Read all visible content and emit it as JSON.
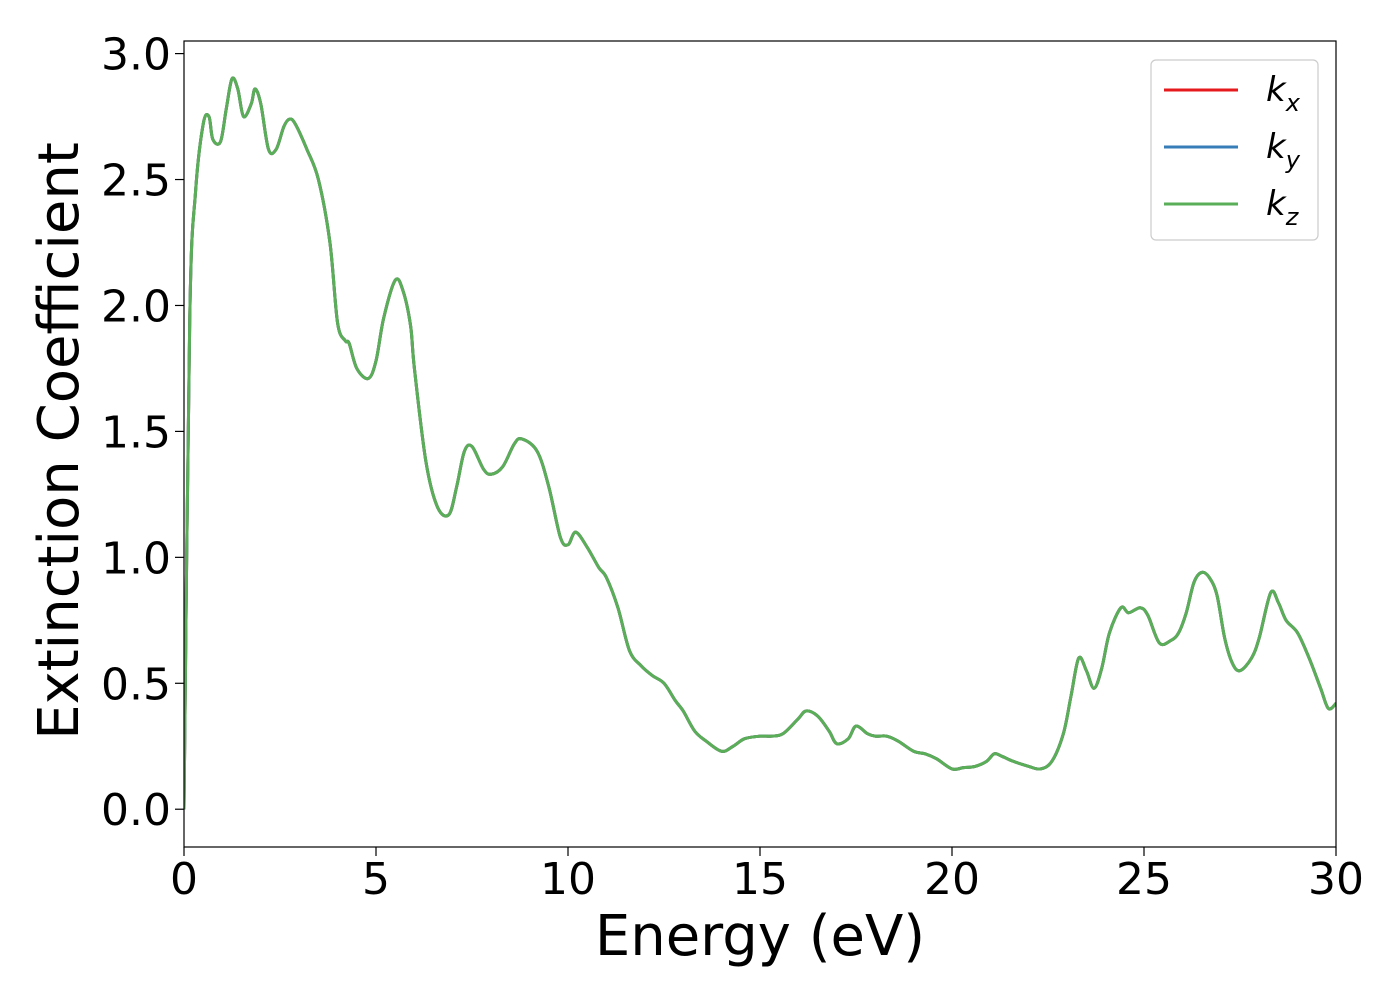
{
  "chart_data": {
    "type": "line",
    "xlabel": "Energy (eV)",
    "ylabel": "Extinction Coefficient",
    "xlim": [
      0,
      30
    ],
    "ylim": [
      -0.15,
      3.05
    ],
    "x_ticks": [
      0,
      5,
      10,
      15,
      20,
      25,
      30
    ],
    "x_tick_labels": [
      "0",
      "5",
      "10",
      "15",
      "20",
      "25",
      "30"
    ],
    "y_ticks": [
      0.0,
      0.5,
      1.0,
      1.5,
      2.0,
      2.5,
      3.0
    ],
    "y_tick_labels": [
      "0.0",
      "0.5",
      "1.0",
      "1.5",
      "2.0",
      "2.5",
      "3.0"
    ],
    "grid": false,
    "legend_position": "top-right",
    "colors": {
      "kx": "#e41a1c",
      "ky": "#377eb8",
      "kz": "#5aae58"
    },
    "series": [
      {
        "name": "kx",
        "label_main": "k",
        "label_sub": "x",
        "color": "#e41a1c",
        "x": [
          0.0,
          0.15,
          0.3,
          0.5,
          0.65,
          0.75,
          0.95,
          1.1,
          1.25,
          1.4,
          1.55,
          1.75,
          1.85,
          2.0,
          2.2,
          2.4,
          2.6,
          2.75,
          2.9,
          3.2,
          3.5,
          3.8,
          4.0,
          4.2,
          4.3,
          4.5,
          4.8,
          5.0,
          5.2,
          5.5,
          5.7,
          5.9,
          6.0,
          6.3,
          6.6,
          6.9,
          7.1,
          7.3,
          7.5,
          7.8,
          8.0,
          8.3,
          8.6,
          8.8,
          9.2,
          9.5,
          9.8,
          10.0,
          10.2,
          10.5,
          10.8,
          11.0,
          11.3,
          11.6,
          11.9,
          12.2,
          12.5,
          12.8,
          13.0,
          13.3,
          13.6,
          14.0,
          14.3,
          14.6,
          15.0,
          15.3,
          15.6,
          16.0,
          16.2,
          16.5,
          16.8,
          17.0,
          17.3,
          17.5,
          17.8,
          18.0,
          18.3,
          18.6,
          19.0,
          19.3,
          19.6,
          20.0,
          20.3,
          20.6,
          20.9,
          21.1,
          21.3,
          21.6,
          22.0,
          22.3,
          22.6,
          22.9,
          23.1,
          23.3,
          23.5,
          23.7,
          23.9,
          24.1,
          24.4,
          24.6,
          24.9,
          25.1,
          25.4,
          25.7,
          25.9,
          26.1,
          26.3,
          26.5,
          26.7,
          26.9,
          27.1,
          27.3,
          27.5,
          27.8,
          28.0,
          28.3,
          28.5,
          28.7,
          29.0,
          29.3,
          29.6,
          29.8,
          30.0
        ],
        "y": [
          0.0,
          1.95,
          2.45,
          2.72,
          2.75,
          2.66,
          2.65,
          2.78,
          2.9,
          2.86,
          2.75,
          2.8,
          2.86,
          2.8,
          2.62,
          2.62,
          2.71,
          2.74,
          2.72,
          2.62,
          2.5,
          2.25,
          1.93,
          1.86,
          1.85,
          1.75,
          1.71,
          1.78,
          1.95,
          2.1,
          2.06,
          1.92,
          1.75,
          1.38,
          1.2,
          1.17,
          1.28,
          1.42,
          1.44,
          1.35,
          1.33,
          1.36,
          1.45,
          1.47,
          1.42,
          1.28,
          1.08,
          1.05,
          1.1,
          1.04,
          0.96,
          0.92,
          0.8,
          0.63,
          0.57,
          0.53,
          0.5,
          0.43,
          0.39,
          0.31,
          0.27,
          0.23,
          0.25,
          0.28,
          0.29,
          0.29,
          0.3,
          0.36,
          0.39,
          0.37,
          0.31,
          0.26,
          0.28,
          0.33,
          0.3,
          0.29,
          0.29,
          0.27,
          0.23,
          0.22,
          0.2,
          0.16,
          0.165,
          0.17,
          0.19,
          0.22,
          0.21,
          0.19,
          0.17,
          0.16,
          0.19,
          0.3,
          0.45,
          0.6,
          0.55,
          0.48,
          0.56,
          0.7,
          0.8,
          0.78,
          0.8,
          0.77,
          0.66,
          0.67,
          0.7,
          0.78,
          0.9,
          0.94,
          0.92,
          0.85,
          0.68,
          0.58,
          0.55,
          0.6,
          0.68,
          0.86,
          0.82,
          0.75,
          0.7,
          0.6,
          0.48,
          0.4,
          0.42
        ]
      },
      {
        "name": "ky",
        "label_main": "k",
        "label_sub": "y",
        "color": "#377eb8",
        "x": [
          0.0,
          0.15,
          0.3,
          0.5,
          0.65,
          0.75,
          0.95,
          1.1,
          1.25,
          1.4,
          1.55,
          1.75,
          1.85,
          2.0,
          2.2,
          2.4,
          2.6,
          2.75,
          2.9,
          3.2,
          3.5,
          3.8,
          4.0,
          4.2,
          4.3,
          4.5,
          4.8,
          5.0,
          5.2,
          5.5,
          5.7,
          5.9,
          6.0,
          6.3,
          6.6,
          6.9,
          7.1,
          7.3,
          7.5,
          7.8,
          8.0,
          8.3,
          8.6,
          8.8,
          9.2,
          9.5,
          9.8,
          10.0,
          10.2,
          10.5,
          10.8,
          11.0,
          11.3,
          11.6,
          11.9,
          12.2,
          12.5,
          12.8,
          13.0,
          13.3,
          13.6,
          14.0,
          14.3,
          14.6,
          15.0,
          15.3,
          15.6,
          16.0,
          16.2,
          16.5,
          16.8,
          17.0,
          17.3,
          17.5,
          17.8,
          18.0,
          18.3,
          18.6,
          19.0,
          19.3,
          19.6,
          20.0,
          20.3,
          20.6,
          20.9,
          21.1,
          21.3,
          21.6,
          22.0,
          22.3,
          22.6,
          22.9,
          23.1,
          23.3,
          23.5,
          23.7,
          23.9,
          24.1,
          24.4,
          24.6,
          24.9,
          25.1,
          25.4,
          25.7,
          25.9,
          26.1,
          26.3,
          26.5,
          26.7,
          26.9,
          27.1,
          27.3,
          27.5,
          27.8,
          28.0,
          28.3,
          28.5,
          28.7,
          29.0,
          29.3,
          29.6,
          29.8,
          30.0
        ],
        "y": [
          0.0,
          1.95,
          2.45,
          2.72,
          2.75,
          2.66,
          2.65,
          2.78,
          2.9,
          2.86,
          2.75,
          2.8,
          2.86,
          2.8,
          2.62,
          2.62,
          2.71,
          2.74,
          2.72,
          2.62,
          2.5,
          2.25,
          1.93,
          1.86,
          1.85,
          1.75,
          1.71,
          1.78,
          1.95,
          2.1,
          2.06,
          1.92,
          1.75,
          1.38,
          1.2,
          1.17,
          1.28,
          1.42,
          1.44,
          1.35,
          1.33,
          1.36,
          1.45,
          1.47,
          1.42,
          1.28,
          1.08,
          1.05,
          1.1,
          1.04,
          0.96,
          0.92,
          0.8,
          0.63,
          0.57,
          0.53,
          0.5,
          0.43,
          0.39,
          0.31,
          0.27,
          0.23,
          0.25,
          0.28,
          0.29,
          0.29,
          0.3,
          0.36,
          0.39,
          0.37,
          0.31,
          0.26,
          0.28,
          0.33,
          0.3,
          0.29,
          0.29,
          0.27,
          0.23,
          0.22,
          0.2,
          0.16,
          0.165,
          0.17,
          0.19,
          0.22,
          0.21,
          0.19,
          0.17,
          0.16,
          0.19,
          0.3,
          0.45,
          0.6,
          0.55,
          0.48,
          0.56,
          0.7,
          0.8,
          0.78,
          0.8,
          0.77,
          0.66,
          0.67,
          0.7,
          0.78,
          0.9,
          0.94,
          0.92,
          0.85,
          0.68,
          0.58,
          0.55,
          0.6,
          0.68,
          0.86,
          0.82,
          0.75,
          0.7,
          0.6,
          0.48,
          0.4,
          0.42
        ]
      },
      {
        "name": "kz",
        "label_main": "k",
        "label_sub": "z",
        "color": "#5aae58",
        "x": [
          0.0,
          0.15,
          0.3,
          0.5,
          0.65,
          0.75,
          0.95,
          1.1,
          1.25,
          1.4,
          1.55,
          1.75,
          1.85,
          2.0,
          2.2,
          2.4,
          2.6,
          2.75,
          2.9,
          3.2,
          3.5,
          3.8,
          4.0,
          4.2,
          4.3,
          4.5,
          4.8,
          5.0,
          5.2,
          5.5,
          5.7,
          5.9,
          6.0,
          6.3,
          6.6,
          6.9,
          7.1,
          7.3,
          7.5,
          7.8,
          8.0,
          8.3,
          8.6,
          8.8,
          9.2,
          9.5,
          9.8,
          10.0,
          10.2,
          10.5,
          10.8,
          11.0,
          11.3,
          11.6,
          11.9,
          12.2,
          12.5,
          12.8,
          13.0,
          13.3,
          13.6,
          14.0,
          14.3,
          14.6,
          15.0,
          15.3,
          15.6,
          16.0,
          16.2,
          16.5,
          16.8,
          17.0,
          17.3,
          17.5,
          17.8,
          18.0,
          18.3,
          18.6,
          19.0,
          19.3,
          19.6,
          20.0,
          20.3,
          20.6,
          20.9,
          21.1,
          21.3,
          21.6,
          22.0,
          22.3,
          22.6,
          22.9,
          23.1,
          23.3,
          23.5,
          23.7,
          23.9,
          24.1,
          24.4,
          24.6,
          24.9,
          25.1,
          25.4,
          25.7,
          25.9,
          26.1,
          26.3,
          26.5,
          26.7,
          26.9,
          27.1,
          27.3,
          27.5,
          27.8,
          28.0,
          28.3,
          28.5,
          28.7,
          29.0,
          29.3,
          29.6,
          29.8,
          30.0
        ],
        "y": [
          0.0,
          1.95,
          2.45,
          2.72,
          2.75,
          2.66,
          2.65,
          2.78,
          2.9,
          2.86,
          2.75,
          2.8,
          2.86,
          2.8,
          2.62,
          2.62,
          2.71,
          2.74,
          2.72,
          2.62,
          2.5,
          2.25,
          1.93,
          1.86,
          1.85,
          1.75,
          1.71,
          1.78,
          1.95,
          2.1,
          2.06,
          1.92,
          1.75,
          1.38,
          1.2,
          1.17,
          1.28,
          1.42,
          1.44,
          1.35,
          1.33,
          1.36,
          1.45,
          1.47,
          1.42,
          1.28,
          1.08,
          1.05,
          1.1,
          1.04,
          0.96,
          0.92,
          0.8,
          0.63,
          0.57,
          0.53,
          0.5,
          0.43,
          0.39,
          0.31,
          0.27,
          0.23,
          0.25,
          0.28,
          0.29,
          0.29,
          0.3,
          0.36,
          0.39,
          0.37,
          0.31,
          0.26,
          0.28,
          0.33,
          0.3,
          0.29,
          0.29,
          0.27,
          0.23,
          0.22,
          0.2,
          0.16,
          0.165,
          0.17,
          0.19,
          0.22,
          0.21,
          0.19,
          0.17,
          0.16,
          0.19,
          0.3,
          0.45,
          0.6,
          0.55,
          0.48,
          0.56,
          0.7,
          0.8,
          0.78,
          0.8,
          0.77,
          0.66,
          0.67,
          0.7,
          0.78,
          0.9,
          0.94,
          0.92,
          0.85,
          0.68,
          0.58,
          0.55,
          0.6,
          0.68,
          0.86,
          0.82,
          0.75,
          0.7,
          0.6,
          0.48,
          0.4,
          0.42
        ]
      }
    ]
  }
}
